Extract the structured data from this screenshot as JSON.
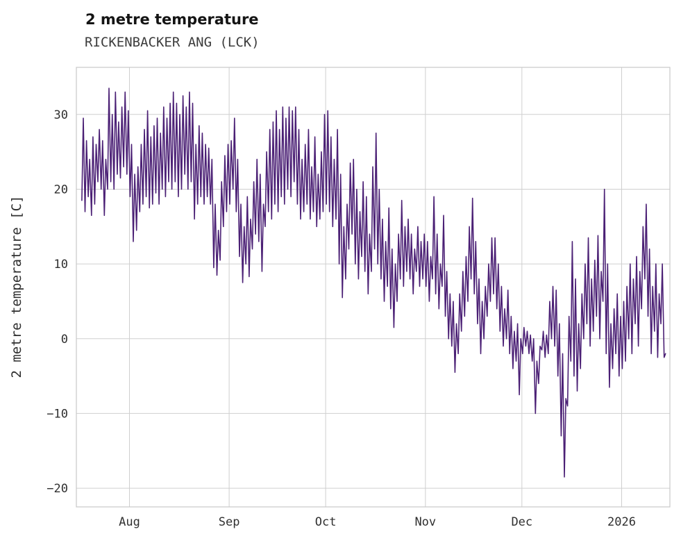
{
  "page": {
    "title": "2 metre temperature",
    "subtitle": "RICKENBACKER ANG (LCK)"
  },
  "chart_data": {
    "type": "line",
    "title": "2 metre temperature",
    "subtitle": "RICKENBACKER ANG (LCK)",
    "ylabel": "2 metre temperature [C]",
    "xlabel": "",
    "series_name": "2 metre temperature",
    "line_color": "#4b2075",
    "grid": true,
    "legend": "none",
    "x_unit": "day index (two samples per day: daily min, daily max)",
    "ylim": [
      -22.5,
      36.3
    ],
    "xlim": [
      -1.5,
      183
    ],
    "y_ticks": [
      {
        "value": -20,
        "label": "−20"
      },
      {
        "value": -10,
        "label": "−10"
      },
      {
        "value": 0,
        "label": "0"
      },
      {
        "value": 10,
        "label": "10"
      },
      {
        "value": 20,
        "label": "20"
      },
      {
        "value": 30,
        "label": "30"
      }
    ],
    "x_ticks": [
      {
        "day": 15,
        "label": "Aug"
      },
      {
        "day": 46,
        "label": "Sep"
      },
      {
        "day": 76,
        "label": "Oct"
      },
      {
        "day": 107,
        "label": "Nov"
      },
      {
        "day": 137,
        "label": "Dec"
      },
      {
        "day": 168,
        "label": "2026"
      }
    ],
    "daily_min_max": [
      [
        18.5,
        29.5
      ],
      [
        17,
        26.5
      ],
      [
        19,
        24
      ],
      [
        16.5,
        27
      ],
      [
        18,
        26
      ],
      [
        21,
        28
      ],
      [
        20,
        26.5
      ],
      [
        16.5,
        24
      ],
      [
        20,
        33.5
      ],
      [
        21,
        30
      ],
      [
        20,
        33
      ],
      [
        22,
        29
      ],
      [
        21.5,
        31
      ],
      [
        23,
        33
      ],
      [
        22,
        30.5
      ],
      [
        19,
        26
      ],
      [
        13,
        22
      ],
      [
        14.5,
        23
      ],
      [
        17,
        26
      ],
      [
        18,
        28
      ],
      [
        19,
        30.5
      ],
      [
        17.5,
        27
      ],
      [
        18,
        28.5
      ],
      [
        19.5,
        29.5
      ],
      [
        18,
        27.5
      ],
      [
        20,
        31
      ],
      [
        19,
        29.5
      ],
      [
        21,
        31.5
      ],
      [
        20,
        33
      ],
      [
        21,
        31.5
      ],
      [
        19,
        30
      ],
      [
        20,
        32.5
      ],
      [
        22,
        31
      ],
      [
        20,
        33
      ],
      [
        21,
        31.5
      ],
      [
        16,
        26
      ],
      [
        18,
        28.5
      ],
      [
        19,
        27.5
      ],
      [
        18,
        26
      ],
      [
        19,
        25.5
      ],
      [
        18,
        24
      ],
      [
        9.5,
        18
      ],
      [
        8.5,
        14.5
      ],
      [
        10.5,
        21
      ],
      [
        15,
        24.5
      ],
      [
        17,
        26
      ],
      [
        18,
        26.5
      ],
      [
        20,
        29.5
      ],
      [
        17,
        24
      ],
      [
        11,
        18
      ],
      [
        7.5,
        15
      ],
      [
        10,
        19
      ],
      [
        8.3,
        16
      ],
      [
        12,
        21
      ],
      [
        14,
        24
      ],
      [
        13,
        22
      ],
      [
        9,
        18
      ],
      [
        15,
        25
      ],
      [
        17,
        28
      ],
      [
        16,
        29
      ],
      [
        18,
        30.5
      ],
      [
        17,
        28
      ],
      [
        19,
        31
      ],
      [
        18,
        29.5
      ],
      [
        20,
        31
      ],
      [
        19,
        30.5
      ],
      [
        21,
        31
      ],
      [
        18,
        28
      ],
      [
        16,
        24
      ],
      [
        17,
        26
      ],
      [
        18,
        28
      ],
      [
        16,
        23
      ],
      [
        17,
        27
      ],
      [
        15,
        22
      ],
      [
        16,
        25
      ],
      [
        17,
        30
      ],
      [
        18,
        30.5
      ],
      [
        17,
        27
      ],
      [
        15,
        24
      ],
      [
        16,
        28
      ],
      [
        10,
        22
      ],
      [
        5.5,
        15
      ],
      [
        8,
        18
      ],
      [
        12,
        23.5
      ],
      [
        14,
        24
      ],
      [
        10,
        20
      ],
      [
        8,
        17
      ],
      [
        11,
        21
      ],
      [
        9,
        19
      ],
      [
        6,
        14
      ],
      [
        9,
        23
      ],
      [
        12,
        27.5
      ],
      [
        10,
        20
      ],
      [
        8,
        16
      ],
      [
        5,
        13
      ],
      [
        7,
        17.5
      ],
      [
        4,
        12
      ],
      [
        1.5,
        10
      ],
      [
        5,
        14
      ],
      [
        8,
        18.5
      ],
      [
        7,
        15
      ],
      [
        9,
        16
      ],
      [
        8,
        14
      ],
      [
        6,
        12
      ],
      [
        9,
        15
      ],
      [
        7,
        13
      ],
      [
        8,
        14
      ],
      [
        7,
        13
      ],
      [
        5,
        11
      ],
      [
        8,
        19
      ],
      [
        6,
        14
      ],
      [
        4,
        10
      ],
      [
        7,
        16.5
      ],
      [
        3,
        9
      ],
      [
        0,
        6
      ],
      [
        -1,
        5
      ],
      [
        -4.5,
        2
      ],
      [
        -2,
        6
      ],
      [
        1,
        9
      ],
      [
        3,
        11
      ],
      [
        5,
        15
      ],
      [
        8,
        18.8
      ],
      [
        6,
        13
      ],
      [
        2,
        8
      ],
      [
        -2,
        5
      ],
      [
        0,
        7
      ],
      [
        3,
        10
      ],
      [
        5,
        13.5
      ],
      [
        6,
        13.5
      ],
      [
        4,
        10
      ],
      [
        1,
        7
      ],
      [
        -1,
        4
      ],
      [
        0,
        6.5
      ],
      [
        -2,
        3
      ],
      [
        -4,
        1
      ],
      [
        -3,
        2
      ],
      [
        -7.5,
        0
      ],
      [
        -2,
        1.5
      ],
      [
        -1,
        1
      ],
      [
        -2,
        0.5
      ],
      [
        -3,
        0
      ],
      [
        -10,
        -3
      ],
      [
        -6,
        -1
      ],
      [
        -1.5,
        1
      ],
      [
        -2.5,
        0.5
      ],
      [
        -2,
        5
      ],
      [
        0,
        7
      ],
      [
        -1,
        6.5
      ],
      [
        -5,
        2
      ],
      [
        -13,
        -2
      ],
      [
        -18.5,
        -8
      ],
      [
        -9,
        3
      ],
      [
        -3,
        13
      ],
      [
        -5,
        8
      ],
      [
        -7,
        2
      ],
      [
        -4,
        6
      ],
      [
        0,
        10
      ],
      [
        2,
        13.5
      ],
      [
        -1,
        8
      ],
      [
        1,
        10.5
      ],
      [
        3,
        13.8
      ],
      [
        0,
        9
      ],
      [
        5,
        20
      ],
      [
        -2,
        10
      ],
      [
        -6.5,
        2
      ],
      [
        -4,
        4
      ],
      [
        -2,
        6
      ],
      [
        -5,
        3
      ],
      [
        -4,
        5
      ],
      [
        -3,
        7
      ],
      [
        0,
        10
      ],
      [
        -2,
        8
      ],
      [
        2,
        11
      ],
      [
        -1,
        9
      ],
      [
        4,
        15
      ],
      [
        8,
        18
      ],
      [
        3,
        12
      ],
      [
        -2,
        7
      ],
      [
        1,
        10
      ],
      [
        -2.5,
        6
      ],
      [
        2,
        10
      ],
      [
        -2.5,
        -2
      ]
    ]
  }
}
